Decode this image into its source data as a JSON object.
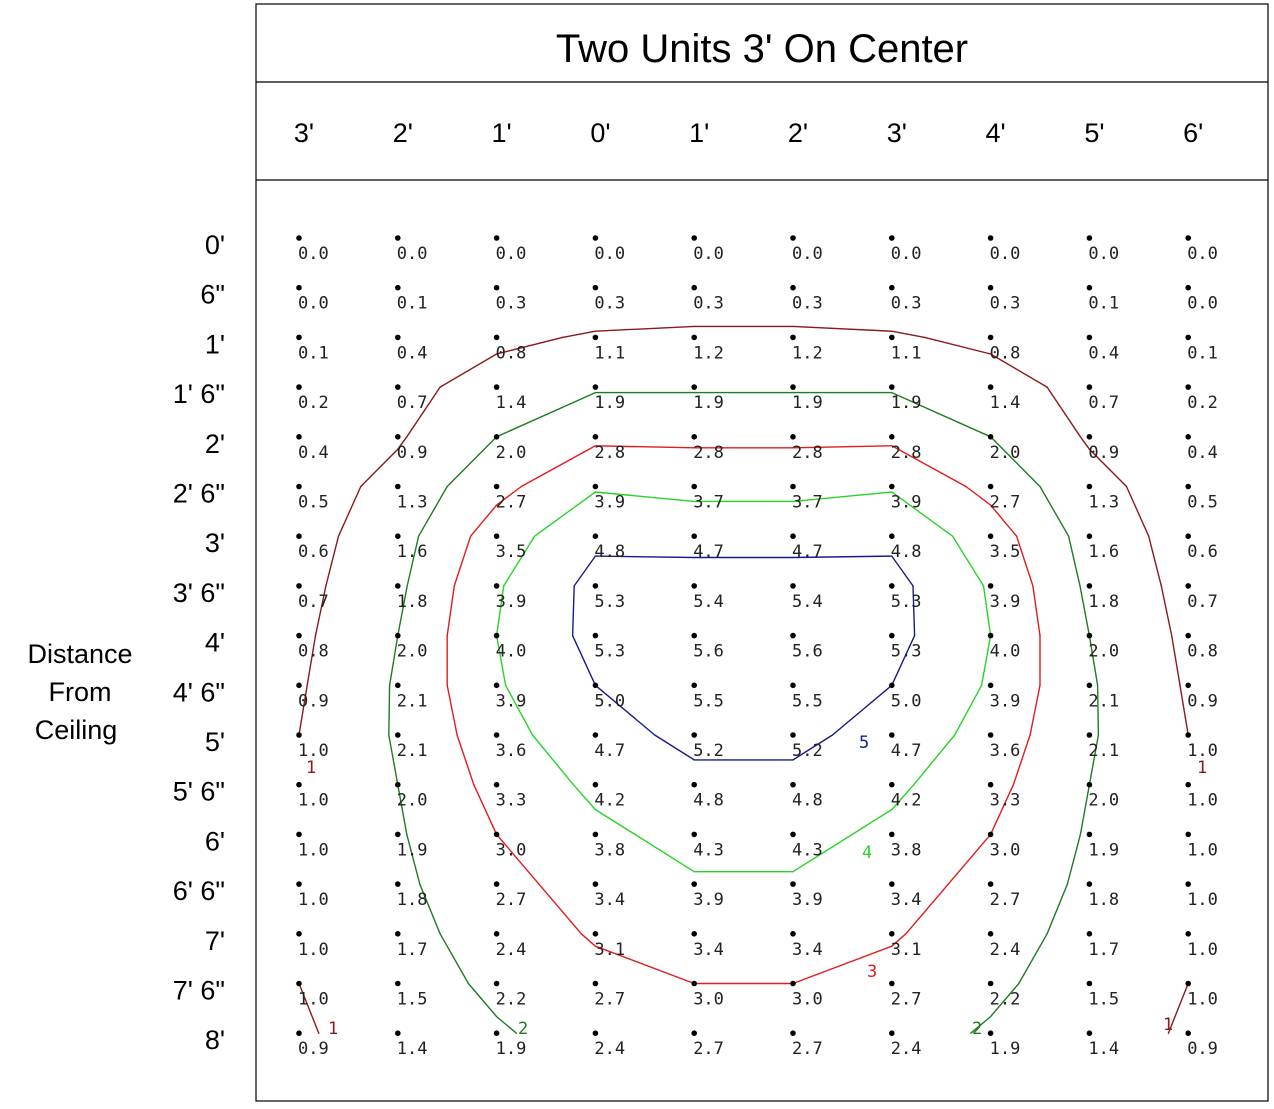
{
  "chart_data": {
    "type": "heatmap",
    "title": "Two Units 3' On Center",
    "ylabel": "Distance From Ceiling",
    "ylabel_lines": [
      "Distance",
      "From",
      "Ceiling"
    ],
    "x_labels": [
      "3'",
      "2'",
      "1'",
      "0'",
      "1'",
      "2'",
      "3'",
      "4'",
      "5'",
      "6'"
    ],
    "y_labels": [
      "0'",
      "6\"",
      "1'",
      "1' 6\"",
      "2'",
      "2' 6\"",
      "3'",
      "3' 6\"",
      "4'",
      "4' 6\"",
      "5'",
      "5' 6\"",
      "6'",
      "6' 6\"",
      "7'",
      "7' 6\"",
      "8'"
    ],
    "values": [
      [
        0.0,
        0.0,
        0.0,
        0.0,
        0.0,
        0.0,
        0.0,
        0.0,
        0.0,
        0.0
      ],
      [
        0.0,
        0.1,
        0.3,
        0.3,
        0.3,
        0.3,
        0.3,
        0.3,
        0.1,
        0.0
      ],
      [
        0.1,
        0.4,
        0.8,
        1.1,
        1.2,
        1.2,
        1.1,
        0.8,
        0.4,
        0.1
      ],
      [
        0.2,
        0.7,
        1.4,
        1.9,
        1.9,
        1.9,
        1.9,
        1.4,
        0.7,
        0.2
      ],
      [
        0.4,
        0.9,
        2.0,
        2.8,
        2.8,
        2.8,
        2.8,
        2.0,
        0.9,
        0.4
      ],
      [
        0.5,
        1.3,
        2.7,
        3.9,
        3.7,
        3.7,
        3.9,
        2.7,
        1.3,
        0.5
      ],
      [
        0.6,
        1.6,
        3.5,
        4.8,
        4.7,
        4.7,
        4.8,
        3.5,
        1.6,
        0.6
      ],
      [
        0.7,
        1.8,
        3.9,
        5.3,
        5.4,
        5.4,
        5.3,
        3.9,
        1.8,
        0.7
      ],
      [
        0.8,
        2.0,
        4.0,
        5.3,
        5.6,
        5.6,
        5.3,
        4.0,
        2.0,
        0.8
      ],
      [
        0.9,
        2.1,
        3.9,
        5.0,
        5.5,
        5.5,
        5.0,
        3.9,
        2.1,
        0.9
      ],
      [
        1.0,
        2.1,
        3.6,
        4.7,
        5.2,
        5.2,
        4.7,
        3.6,
        2.1,
        1.0
      ],
      [
        1.0,
        2.0,
        3.3,
        4.2,
        4.8,
        4.8,
        4.2,
        3.3,
        2.0,
        1.0
      ],
      [
        1.0,
        1.9,
        3.0,
        3.8,
        4.3,
        4.3,
        3.8,
        3.0,
        1.9,
        1.0
      ],
      [
        1.0,
        1.8,
        2.7,
        3.4,
        3.9,
        3.9,
        3.4,
        2.7,
        1.8,
        1.0
      ],
      [
        1.0,
        1.7,
        2.4,
        3.1,
        3.4,
        3.4,
        3.1,
        2.4,
        1.7,
        1.0
      ],
      [
        1.0,
        1.5,
        2.2,
        2.7,
        3.0,
        3.0,
        2.7,
        2.2,
        1.5,
        1.0
      ],
      [
        0.9,
        1.4,
        1.9,
        2.4,
        2.7,
        2.7,
        2.4,
        1.9,
        1.4,
        0.9
      ]
    ],
    "contours": [
      {
        "level": 1,
        "label": "1",
        "color": "#8b1a1a"
      },
      {
        "level": 2,
        "label": "2",
        "color": "#1e7d1e"
      },
      {
        "level": 3,
        "label": "3",
        "color": "#e31b1b"
      },
      {
        "level": 4,
        "label": "4",
        "color": "#28d428"
      },
      {
        "level": 5,
        "label": "5",
        "color": "#1a1a8b"
      }
    ]
  }
}
